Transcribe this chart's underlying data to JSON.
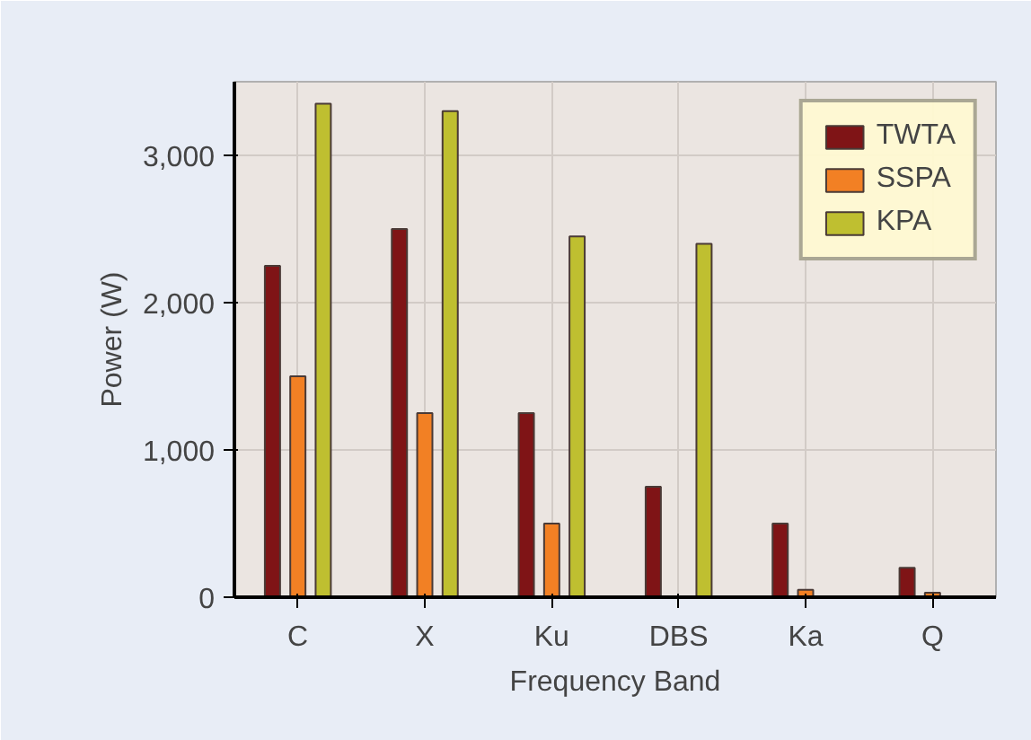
{
  "chart_data": {
    "type": "bar",
    "xlabel": "Frequency Band",
    "ylabel": "Power (W)",
    "categories": [
      "C",
      "X",
      "Ku",
      "DBS",
      "Ka",
      "Q"
    ],
    "series": [
      {
        "name": "TWTA",
        "color": "#7f1416",
        "values": [
          2250,
          2500,
          1250,
          750,
          500,
          200
        ]
      },
      {
        "name": "SSPA",
        "color": "#f28024",
        "values": [
          1500,
          1250,
          500,
          null,
          50,
          30
        ]
      },
      {
        "name": "KPA",
        "color": "#bfbf30",
        "values": [
          3350,
          3300,
          2450,
          2400,
          null,
          null
        ]
      }
    ],
    "ylim": [
      0,
      3500
    ],
    "yticks": [
      0,
      {
        "value": 1000,
        "label": "1,000"
      },
      {
        "value": 2000,
        "label": "2,000"
      },
      {
        "value": 3000,
        "label": "3,000"
      }
    ],
    "grid": true,
    "legend": "top right"
  }
}
